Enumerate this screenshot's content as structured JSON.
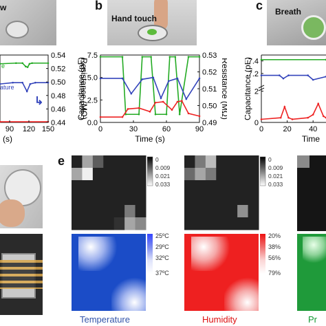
{
  "panels": {
    "a": {
      "photo_label": "w"
    },
    "b": {
      "letter": "b",
      "photo_label": "Hand touch"
    },
    "c": {
      "letter": "c",
      "photo_label": "Breath"
    },
    "e": {
      "letter": "e"
    }
  },
  "colors": {
    "green": "#22aa22",
    "blue": "#3344bb",
    "red": "#ee2222",
    "temperature_label": "#3355aa",
    "humidity_label": "#dd1111",
    "pressure_label": "#119933"
  },
  "chart_data": [
    {
      "id": "a",
      "type": "line",
      "xlabel": "(s)",
      "x_ticks": [
        "90",
        "120",
        "150"
      ],
      "xlim": [
        75,
        150
      ],
      "ylabel_right": "Resistance (MΩ)",
      "right_ticks": [
        "0.54",
        "0.52",
        "0.50",
        "0.48",
        "0.46",
        "0.44"
      ],
      "ylim_right": [
        0.44,
        0.54
      ],
      "series_labels": [
        "e",
        "ature"
      ],
      "arrow_glyph": "↳",
      "series": [
        {
          "color": "green",
          "x": [
            75,
            100,
            110,
            115,
            118,
            121,
            125,
            150
          ],
          "y": [
            0.527,
            0.528,
            0.528,
            0.523,
            0.522,
            0.527,
            0.528,
            0.528
          ]
        },
        {
          "color": "blue",
          "x": [
            75,
            95,
            110,
            117,
            122,
            130,
            150
          ],
          "y": [
            0.497,
            0.499,
            0.499,
            0.486,
            0.497,
            0.499,
            0.499
          ]
        },
        {
          "color": "red",
          "x": [
            75,
            150
          ],
          "y": [
            0.441,
            0.441
          ]
        }
      ]
    },
    {
      "id": "b",
      "type": "line",
      "xlabel": "Time (s)",
      "ylabel_left": "Capacitance (pF)",
      "ylabel_right": "Resistance (MΩ)",
      "x_ticks": [
        "0",
        "30",
        "60",
        "90"
      ],
      "xlim": [
        0,
        90
      ],
      "left_ticks": [
        "7.5",
        "5.0",
        "2.5",
        "0.0"
      ],
      "ylim_left": [
        0,
        7.5
      ],
      "right_ticks": [
        "0.53",
        "0.52",
        "0.51",
        "0.50",
        "0.49"
      ],
      "ylim_right": [
        0.49,
        0.53
      ],
      "series": [
        {
          "color": "green",
          "x": [
            0,
            20,
            23,
            35,
            38,
            46,
            50,
            60,
            63,
            68,
            72,
            80,
            90
          ],
          "y": [
            7.3,
            7.3,
            0.9,
            0.9,
            7.3,
            7.3,
            0.9,
            0.9,
            7.3,
            7.3,
            0.9,
            7.3,
            7.3
          ]
        },
        {
          "color": "blue",
          "x": [
            0,
            20,
            28,
            38,
            48,
            55,
            62,
            70,
            78,
            90
          ],
          "y": [
            4.9,
            4.9,
            3.2,
            4.8,
            5.0,
            2.7,
            4.6,
            4.9,
            2.6,
            4.9
          ]
        },
        {
          "color": "red",
          "x": [
            0,
            20,
            25,
            35,
            45,
            50,
            57,
            65,
            70,
            74,
            80,
            90
          ],
          "y": [
            0.6,
            0.6,
            1.5,
            1.6,
            1.2,
            2.2,
            2.3,
            1.4,
            2.3,
            2.4,
            1.0,
            0.7
          ]
        }
      ]
    },
    {
      "id": "c",
      "type": "line",
      "xlabel": "Time",
      "ylabel_left": "Capacitance (pF)",
      "x_ticks": [
        "0",
        "20",
        "40"
      ],
      "xlim": [
        0,
        50
      ],
      "left_ticks": [
        "7.4",
        "7.2",
        "2",
        "0"
      ],
      "series": [
        {
          "color": "green",
          "x": [
            0,
            50
          ],
          "y": [
            7.42,
            7.42
          ]
        },
        {
          "color": "blue",
          "x": [
            0,
            14,
            17,
            21,
            36,
            40,
            50
          ],
          "y": [
            7.17,
            7.17,
            7.12,
            7.17,
            7.17,
            7.1,
            7.15
          ]
        },
        {
          "color": "red",
          "x": [
            0,
            15,
            18,
            21,
            24,
            36,
            40,
            44,
            48,
            50
          ],
          "y": [
            0.2,
            0.3,
            1.0,
            0.3,
            0.2,
            0.3,
            0.5,
            1.2,
            0.4,
            0.3
          ]
        }
      ]
    },
    {
      "id": "e-temperature-capacitance",
      "type": "heatmap",
      "colorbar_ticks": [
        "0",
        "0.009",
        "0.021",
        "0.033"
      ],
      "grid": [
        [
          0.03,
          0.012,
          0.022,
          0.03,
          0.03,
          0.03,
          0.03
        ],
        [
          0.012,
          0.002,
          0.03,
          0.03,
          0.03,
          0.03,
          0.03
        ],
        [
          0.03,
          0.03,
          0.03,
          0.03,
          0.03,
          0.03,
          0.03
        ],
        [
          0.03,
          0.03,
          0.03,
          0.03,
          0.03,
          0.03,
          0.03
        ],
        [
          0.03,
          0.03,
          0.03,
          0.03,
          0.03,
          0.018,
          0.03
        ],
        [
          0.03,
          0.03,
          0.03,
          0.03,
          0.028,
          0.012,
          0.016
        ]
      ]
    },
    {
      "id": "e-humidity-capacitance",
      "type": "heatmap",
      "colorbar_ticks": [
        "0",
        "0.009",
        "0.021",
        "0.033"
      ],
      "grid": [
        [
          0.03,
          0.018,
          0.009,
          0.03,
          0.03,
          0.03,
          0.03
        ],
        [
          0.02,
          0.012,
          0.018,
          0.03,
          0.03,
          0.03,
          0.03
        ],
        [
          0.03,
          0.03,
          0.03,
          0.03,
          0.03,
          0.03,
          0.03
        ],
        [
          0.03,
          0.03,
          0.03,
          0.03,
          0.03,
          0.03,
          0.03
        ],
        [
          0.03,
          0.03,
          0.03,
          0.03,
          0.03,
          0.015,
          0.03
        ],
        [
          0.03,
          0.03,
          0.03,
          0.03,
          0.03,
          0.03,
          0.03
        ]
      ]
    },
    {
      "id": "e-temperature-map",
      "type": "heatmap",
      "colorbar_ticks": [
        "25ºC",
        "29ºC",
        "32ºC",
        "37ºC"
      ],
      "label": "Temperature",
      "hot_spots": [
        "top-left",
        "bottom-right"
      ]
    },
    {
      "id": "e-humidity-map",
      "type": "heatmap",
      "colorbar_ticks": [
        "20%",
        "38%",
        "56%",
        "79%"
      ],
      "label": "Humidity",
      "hot_spots": [
        "top-left",
        "bottom-right"
      ]
    },
    {
      "id": "e-pressure-map",
      "type": "heatmap",
      "label": "Pr"
    }
  ]
}
